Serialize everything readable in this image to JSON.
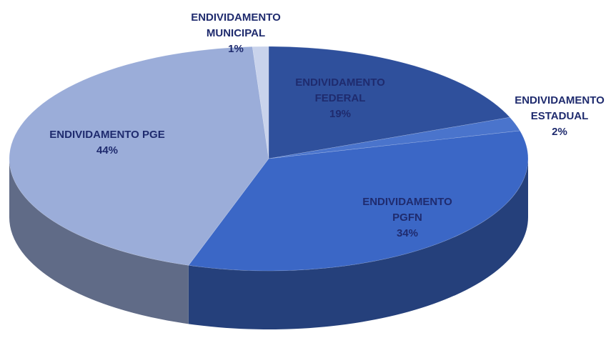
{
  "chart_data": {
    "type": "pie",
    "categories": [
      "ENDIVIDAMENTO FEDERAL",
      "ENDIVIDAMENTO ESTADUAL",
      "ENDIVIDAMENTO PGFN",
      "ENDIVIDAMENTO PGE",
      "ENDIVIDAMENTO MUNICIPAL"
    ],
    "values": [
      19,
      2,
      34,
      44,
      1
    ],
    "value_labels": [
      "19%",
      "2%",
      "34%",
      "44%",
      "1%"
    ],
    "colors": [
      "#2f509c",
      "#4a74cc",
      "#3b67c6",
      "#9badd9",
      "#c9d3ec"
    ]
  }
}
